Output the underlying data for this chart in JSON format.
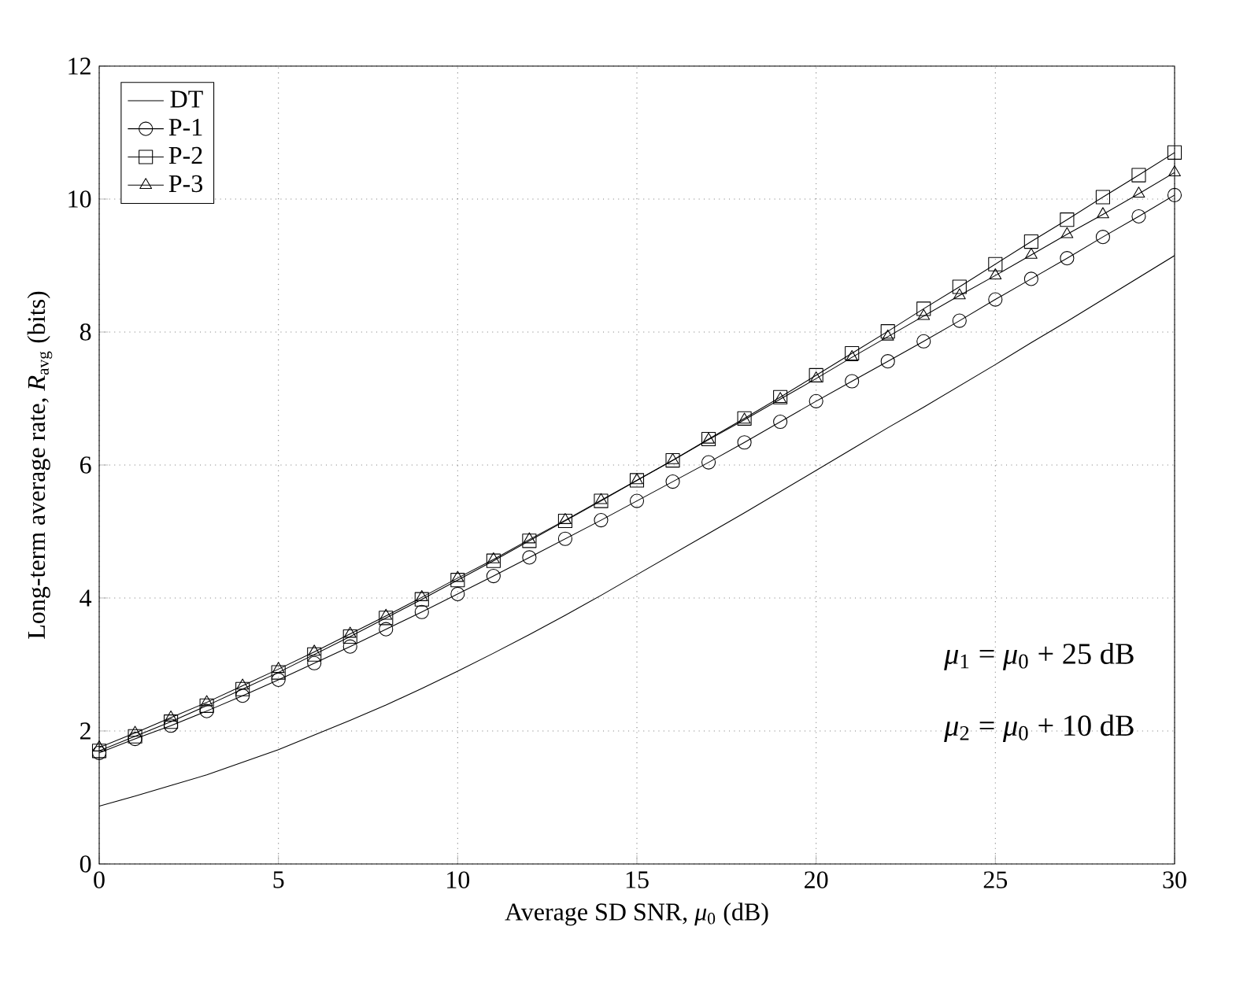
{
  "chart_data": {
    "type": "line",
    "xlabel": "Average SD SNR, *μ*$_{0}$ (dB)",
    "ylabel": "Long-term average rate, *R*$_{avg}$ (bits)",
    "x": [
      0,
      1,
      2,
      3,
      4,
      5,
      6,
      7,
      8,
      9,
      10,
      11,
      12,
      13,
      14,
      15,
      16,
      17,
      18,
      19,
      20,
      21,
      22,
      23,
      24,
      25,
      26,
      27,
      28,
      29,
      30
    ],
    "series": [
      {
        "name": "DT",
        "color": "#000000",
        "marker": "none",
        "values": [
          0.87,
          1.02,
          1.18,
          1.34,
          1.53,
          1.72,
          1.94,
          2.16,
          2.39,
          2.64,
          2.9,
          3.17,
          3.45,
          3.74,
          4.04,
          4.35,
          4.66,
          4.97,
          5.28,
          5.6,
          5.92,
          6.24,
          6.56,
          6.87,
          7.19,
          7.51,
          7.84,
          8.16,
          8.49,
          8.82,
          9.15
        ]
      },
      {
        "name": "P-1",
        "color": "#000000",
        "marker": "circle",
        "values": [
          1.67,
          1.88,
          2.08,
          2.3,
          2.53,
          2.77,
          3.02,
          3.27,
          3.53,
          3.79,
          4.06,
          4.33,
          4.61,
          4.89,
          5.17,
          5.46,
          5.75,
          6.04,
          6.34,
          6.65,
          6.96,
          7.26,
          7.56,
          7.86,
          8.17,
          8.49,
          8.8,
          9.11,
          9.43,
          9.74,
          10.06
        ]
      },
      {
        "name": "P-2",
        "color": "#000000",
        "marker": "square",
        "values": [
          1.7,
          1.92,
          2.14,
          2.38,
          2.63,
          2.88,
          3.15,
          3.42,
          3.7,
          3.98,
          4.27,
          4.56,
          4.86,
          5.16,
          5.46,
          5.77,
          6.07,
          6.39,
          6.7,
          7.02,
          7.35,
          7.68,
          8.01,
          8.35,
          8.68,
          9.02,
          9.36,
          9.69,
          10.03,
          10.36,
          10.7
        ]
      },
      {
        "name": "P-3",
        "color": "#000000",
        "marker": "triangle",
        "values": [
          1.75,
          1.97,
          2.2,
          2.43,
          2.68,
          2.93,
          3.19,
          3.46,
          3.73,
          4.01,
          4.3,
          4.58,
          4.88,
          5.17,
          5.47,
          5.77,
          6.07,
          6.38,
          6.68,
          6.99,
          7.3,
          7.62,
          7.93,
          8.24,
          8.55,
          8.85,
          9.16,
          9.47,
          9.77,
          10.08,
          10.4
        ]
      }
    ],
    "xlim": [
      0,
      30
    ],
    "ylim": [
      0,
      12
    ],
    "xticks": [
      0,
      5,
      10,
      15,
      20,
      25,
      30
    ],
    "yticks": [
      0,
      2,
      4,
      6,
      8,
      10,
      12
    ],
    "grid": true,
    "legend": "top left",
    "annotations": [
      "*μ*$_{1}$ = *μ*$_{0}$ + 25 dB",
      "*μ*$_{2}$ = *μ*$_{0}$ + 10 dB"
    ]
  }
}
